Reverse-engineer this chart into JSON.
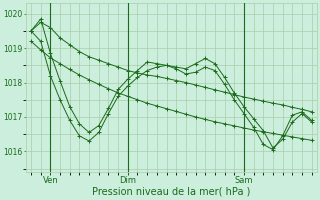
{
  "bg_color": "#cceedd",
  "grid_color": "#aaccaa",
  "line_color": "#1a6b1a",
  "xlabel": "Pression niveau de la mer( hPa )",
  "ylim": [
    1015.4,
    1020.3
  ],
  "yticks": [
    1016,
    1017,
    1018,
    1019,
    1020
  ],
  "xtick_labels": [
    "Ven",
    "Dim",
    "Sam"
  ],
  "xtick_positions": [
    2,
    10,
    22
  ],
  "vline_positions": [
    2,
    10,
    22
  ],
  "n_points": 30,
  "series": [
    [
      1019.5,
      1019.75,
      1019.6,
      1019.3,
      1019.1,
      1018.9,
      1018.75,
      1018.65,
      1018.55,
      1018.45,
      1018.35,
      1018.28,
      1018.22,
      1018.18,
      1018.12,
      1018.06,
      1018.0,
      1017.93,
      1017.86,
      1017.79,
      1017.72,
      1017.65,
      1017.58,
      1017.52,
      1017.46,
      1017.4,
      1017.35,
      1017.28,
      1017.22,
      1017.15
    ],
    [
      1019.2,
      1018.95,
      1018.72,
      1018.55,
      1018.38,
      1018.22,
      1018.08,
      1017.95,
      1017.82,
      1017.7,
      1017.6,
      1017.5,
      1017.4,
      1017.32,
      1017.24,
      1017.16,
      1017.08,
      1017.0,
      1016.93,
      1016.86,
      1016.8,
      1016.74,
      1016.68,
      1016.62,
      1016.57,
      1016.52,
      1016.47,
      1016.42,
      1016.37,
      1016.32
    ],
    [
      1019.5,
      1019.2,
      1018.2,
      1017.5,
      1016.9,
      1016.45,
      1016.3,
      1016.55,
      1017.1,
      1017.6,
      1017.9,
      1018.15,
      1018.35,
      1018.45,
      1018.5,
      1018.45,
      1018.4,
      1018.55,
      1018.7,
      1018.55,
      1018.15,
      1017.7,
      1017.3,
      1016.95,
      1016.6,
      1016.1,
      1016.35,
      1016.85,
      1017.1,
      1016.85
    ],
    [
      1019.5,
      1019.85,
      1018.85,
      1018.05,
      1017.3,
      1016.8,
      1016.55,
      1016.75,
      1017.25,
      1017.8,
      1018.1,
      1018.35,
      1018.6,
      1018.55,
      1018.5,
      1018.4,
      1018.25,
      1018.3,
      1018.45,
      1018.35,
      1017.95,
      1017.5,
      1017.1,
      1016.7,
      1016.2,
      1016.05,
      1016.45,
      1017.05,
      1017.15,
      1016.9
    ]
  ]
}
